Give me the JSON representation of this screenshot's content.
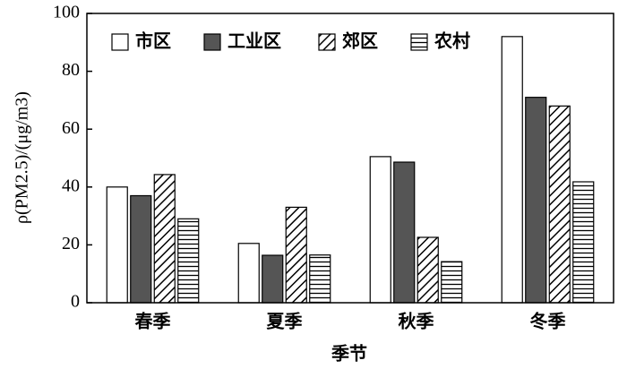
{
  "chart_data": {
    "type": "bar",
    "xlabel": "季节",
    "ylabel": "ρ(PM2.5)/(μg/m3)",
    "categories": [
      "春季",
      "夏季",
      "秋季",
      "冬季"
    ],
    "series": [
      {
        "name": "市区",
        "color": "#ffffff",
        "hatch": "none",
        "values": [
          40,
          20.5,
          50.5,
          92
        ]
      },
      {
        "name": "工业区",
        "color": "#555555",
        "hatch": "none",
        "values": [
          37,
          16.4,
          48.6,
          71
        ]
      },
      {
        "name": "郊区",
        "color": "#ffffff",
        "hatch": "diagonal",
        "values": [
          44.3,
          33,
          22.6,
          68
        ]
      },
      {
        "name": "农村",
        "color": "#ffffff",
        "hatch": "horizontal",
        "values": [
          29,
          16.5,
          14.2,
          41.8
        ]
      }
    ],
    "ylim": [
      0,
      100
    ],
    "yticks": [
      0,
      20,
      40,
      60,
      80,
      100
    ],
    "grid": false,
    "legend": "upper left"
  }
}
